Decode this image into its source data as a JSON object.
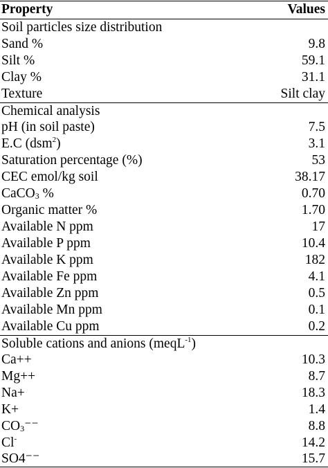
{
  "header": {
    "property": "Property",
    "values": "Values"
  },
  "sections": [
    {
      "title": "Soil particles size distribution",
      "rows": [
        {
          "label": "Sand %",
          "value": "9.8"
        },
        {
          "label": "Silt %",
          "value": "59.1"
        },
        {
          "label": "Clay %",
          "value": "31.1"
        },
        {
          "label": "Texture",
          "value": "Silt clay"
        }
      ]
    },
    {
      "title": "Chemical analysis",
      "rows": [
        {
          "label": "pH (in soil paste)",
          "value": "7.5"
        },
        {
          "label_pre": "E.C (dsm",
          "label_sup": "2",
          "label_post": ")",
          "value": "3.1"
        },
        {
          "label": "Saturation percentage (%)",
          "value": "53"
        },
        {
          "label": "CEC emol/kg soil",
          "value": "38.17"
        },
        {
          "label_pre": "CaCO",
          "label_sub": "3",
          "label_post": " %",
          "value": "0.70"
        },
        {
          "label": "Organic matter %",
          "value": "1.70"
        },
        {
          "label": "Available N ppm",
          "value": "17"
        },
        {
          "label": "Available P ppm",
          "value": "10.4"
        },
        {
          "label": "Available K ppm",
          "value": "182"
        },
        {
          "label": "Available Fe ppm",
          "value": "4.1"
        },
        {
          "label": "Available Zn ppm",
          "value": "0.5"
        },
        {
          "label": "Available Mn ppm",
          "value": "0.1"
        },
        {
          "label": "Available Cu ppm",
          "value": "0.2"
        }
      ]
    },
    {
      "title_pre": "Soluble cations and anions (meqL",
      "title_sup": "-1",
      "title_post": ")",
      "rows": [
        {
          "label": "Ca++",
          "value": "10.3"
        },
        {
          "label": "Mg++",
          "value": "8.7"
        },
        {
          "label": "Na+",
          "value": "18.3"
        },
        {
          "label": "K+",
          "value": "1.4"
        },
        {
          "label_pre": "CO",
          "label_sub": "3",
          "label_post": "⁻⁻",
          "value": "8.8"
        },
        {
          "label_pre": "Cl",
          "label_sup": "-",
          "label_post": "",
          "value": "14.2"
        },
        {
          "label": "SO4⁻⁻",
          "value": "15.7"
        }
      ]
    }
  ]
}
